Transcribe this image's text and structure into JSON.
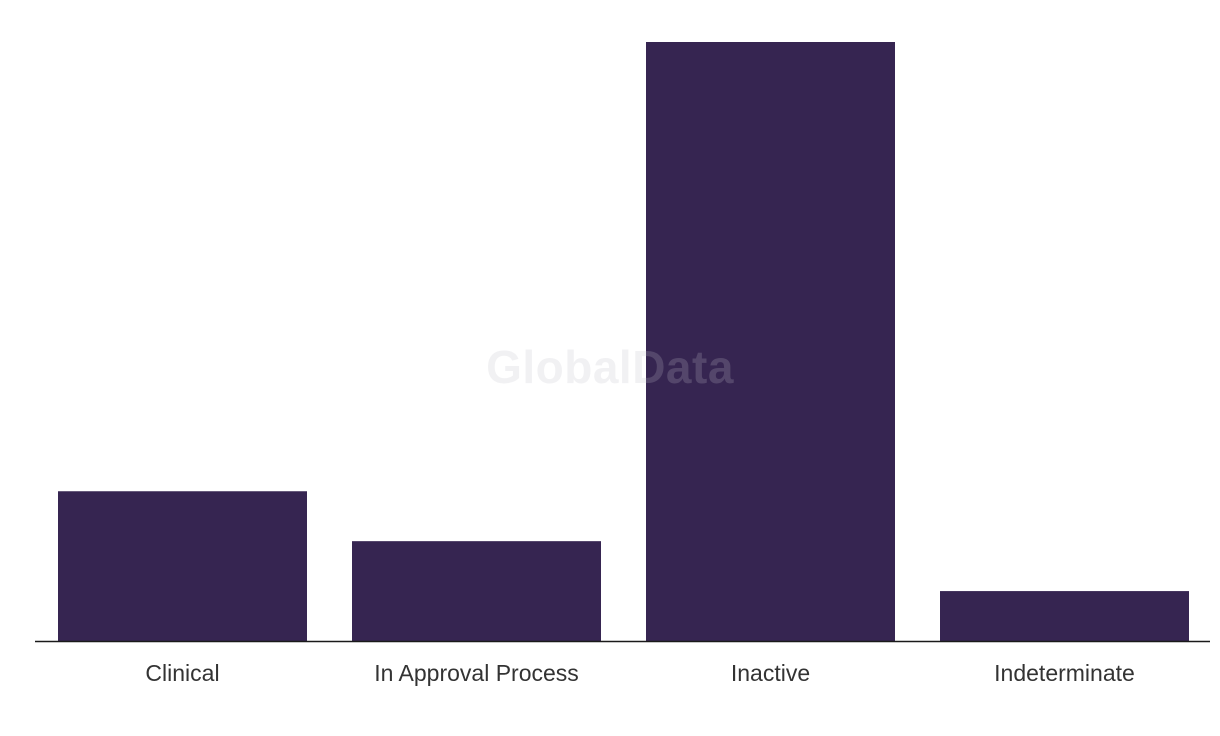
{
  "watermark": "GlobalData",
  "colors": {
    "bar": "#362551",
    "axis": "#1a1a1a",
    "label": "#333333"
  },
  "chart_data": {
    "type": "bar",
    "title": "",
    "xlabel": "",
    "ylabel": "",
    "categories": [
      "Clinical",
      "In Approval Process",
      "Inactive",
      "Indeterminate"
    ],
    "values": [
      3,
      2,
      12,
      1
    ],
    "ylim": [
      0,
      12
    ],
    "grid": false,
    "legend": "none"
  }
}
